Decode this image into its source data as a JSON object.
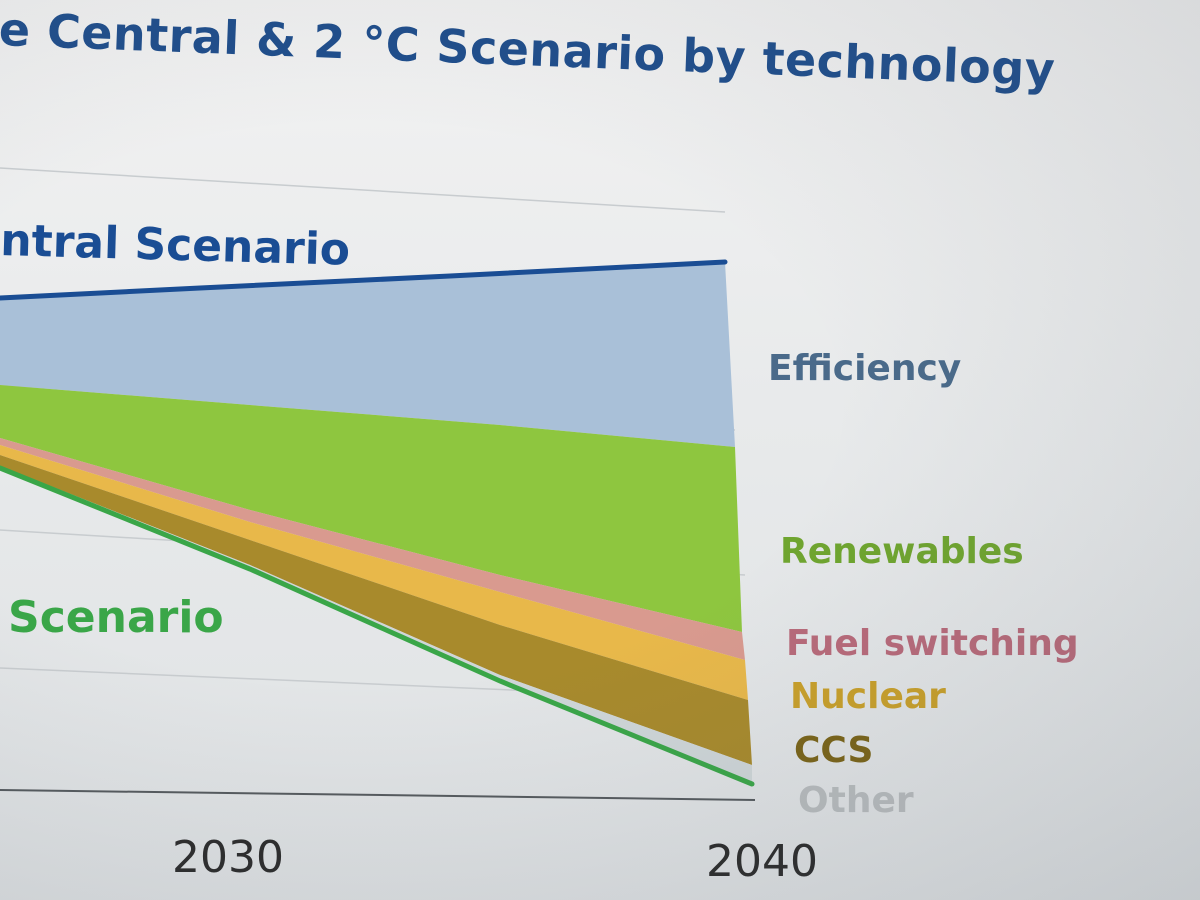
{
  "slide": {
    "title": "e Central & 2 °C Scenario by technology"
  },
  "chart_data": {
    "type": "area",
    "title": "",
    "xlabel": "",
    "ylabel": "",
    "x_ticks": [
      "2030",
      "2040"
    ],
    "grid": true,
    "scenario_labels": [
      {
        "key": "central",
        "text": "ntral Scenario",
        "color": "#1a4d94"
      },
      {
        "key": "two_degree",
        "text": "Scenario",
        "color": "#3aa648"
      }
    ],
    "legend_position": "right",
    "series": [
      {
        "name": "Efficiency",
        "color": "#a9c0d8",
        "label_color": "#4a6a8a"
      },
      {
        "name": "Renewables",
        "color": "#8ec63f",
        "label_color": "#6fa52f"
      },
      {
        "name": "Fuel switching",
        "color": "#d99a8f",
        "label_color": "#b86a7a"
      },
      {
        "name": "Nuclear",
        "color": "#e8b84a",
        "label_color": "#c9a02a"
      },
      {
        "name": "CCS",
        "color": "#a88a2c",
        "label_color": "#7a6418"
      },
      {
        "name": "Other",
        "color": "#cfd6d8",
        "label_color": "#b8bcbe"
      }
    ]
  }
}
